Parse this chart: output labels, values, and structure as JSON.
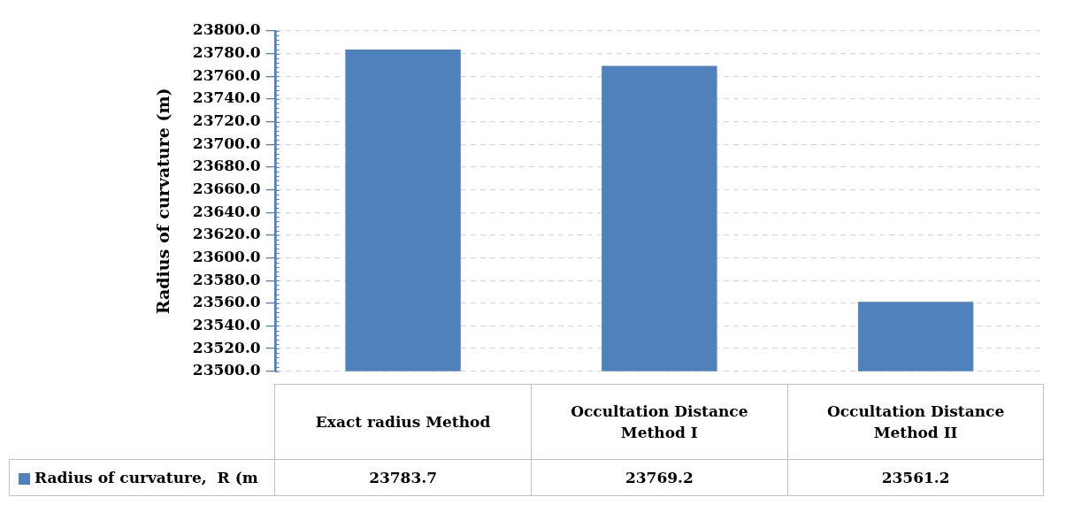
{
  "chart_data": {
    "type": "bar",
    "ylabel": "Radius of curvature (m)",
    "categories": [
      "Exact radius Method",
      "Occultation Distance Method I",
      "Occultation Distance Method II"
    ],
    "series": [
      {
        "name": "Radius of curvature,  R (m",
        "color": "#4f81bd",
        "values": [
          23783.7,
          23769.2,
          23561.2
        ]
      }
    ],
    "ylim": [
      23500,
      23800
    ],
    "yticks": [
      {
        "value": 23500,
        "label": "23500.0"
      },
      {
        "value": 23520,
        "label": "23520.0"
      },
      {
        "value": 23540,
        "label": "23540.0"
      },
      {
        "value": 23560,
        "label": "23560.0"
      },
      {
        "value": 23580,
        "label": "23580.0"
      },
      {
        "value": 23600,
        "label": "23600.0"
      },
      {
        "value": 23620,
        "label": "23620.0"
      },
      {
        "value": 23640,
        "label": "23640.0"
      },
      {
        "value": 23660,
        "label": "23660.0"
      },
      {
        "value": 23680,
        "label": "23680.0"
      },
      {
        "value": 23700,
        "label": "23700.0"
      },
      {
        "value": 23720,
        "label": "23720.0"
      },
      {
        "value": 23740,
        "label": "23740.0"
      },
      {
        "value": 23760,
        "label": "23760.0"
      },
      {
        "value": 23780,
        "label": "23780.0"
      },
      {
        "value": 23800,
        "label": "23800.0"
      }
    ],
    "grid": "y",
    "legend": "bottom",
    "data_labels": true
  }
}
